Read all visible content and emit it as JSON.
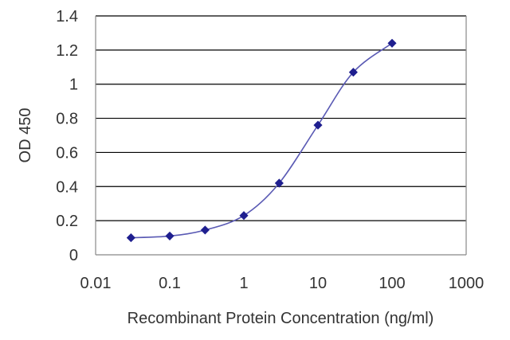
{
  "chart_data": {
    "type": "scatter",
    "title": "",
    "xlabel": "Recombinant Protein Concentration (ng/ml)",
    "ylabel": "OD 450",
    "x_scale": "log",
    "xlim": [
      0.01,
      1000
    ],
    "ylim": [
      0,
      1.4
    ],
    "x_ticks": [
      0.01,
      0.1,
      1,
      10,
      100,
      1000
    ],
    "x_tick_labels": [
      "0.01",
      "0.1",
      "1",
      "10",
      "100",
      "1000"
    ],
    "y_ticks": [
      0,
      0.2,
      0.4,
      0.6,
      0.8,
      1,
      1.2,
      1.4
    ],
    "y_tick_labels": [
      "0",
      "0.2",
      "0.4",
      "0.6",
      "0.8",
      "1",
      "1.2",
      "1.4"
    ],
    "grid": "horizontal",
    "legend": "none",
    "series": [
      {
        "x": [
          0.03,
          0.1,
          0.3,
          1,
          3,
          10,
          30,
          100
        ],
        "y": [
          0.1,
          0.11,
          0.145,
          0.23,
          0.42,
          0.76,
          1.07,
          1.24
        ],
        "fit_curve": true
      }
    ],
    "colors": {
      "series": "#1f1f8f",
      "curve": "#5a5ab4",
      "grid": "#000000",
      "axis": "#888888"
    }
  }
}
